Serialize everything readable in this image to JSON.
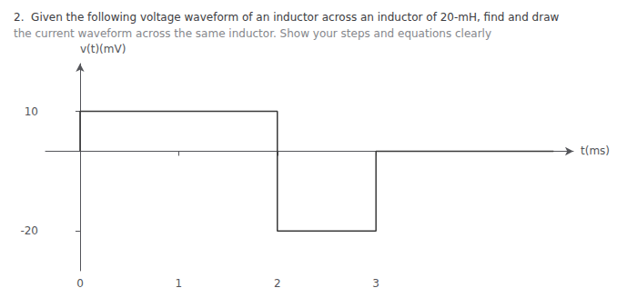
{
  "chart_data": {
    "type": "line",
    "title": "2.  Given the following voltage waveform of an inductor across an inductor of 20-mH, find and draw",
    "subtitle": "the current waveform across the same inductor. Show your steps and equations clearly",
    "x_label": "t(ms)",
    "y_label": "v(t)(mV)",
    "x": [
      0,
      0,
      2,
      2,
      3,
      3,
      4.8
    ],
    "values": [
      0,
      10,
      10,
      -20,
      -20,
      0,
      0
    ],
    "color": "#3a3a3a",
    "xlim": [
      -0.35,
      5.0
    ],
    "ylim": [
      -30,
      22
    ],
    "xticks": [
      0,
      1,
      2,
      3
    ],
    "yticks": [
      10,
      -20
    ],
    "grid": false
  }
}
